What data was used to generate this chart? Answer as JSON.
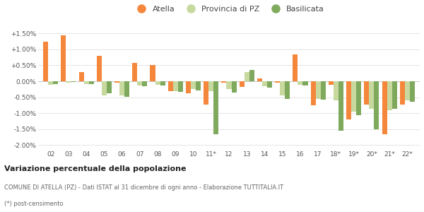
{
  "categories": [
    "02",
    "03",
    "04",
    "05",
    "06",
    "07",
    "08",
    "09",
    "10",
    "11*",
    "12",
    "13",
    "14",
    "15",
    "16",
    "17",
    "18*",
    "19*",
    "20*",
    "21*",
    "22*"
  ],
  "atella": [
    1.25,
    1.45,
    0.28,
    0.8,
    -0.05,
    0.57,
    0.5,
    -0.3,
    -0.38,
    -0.72,
    -0.05,
    -0.18,
    0.08,
    -0.05,
    0.85,
    -0.75,
    -0.1,
    -1.2,
    -0.72,
    -1.65,
    -0.72
  ],
  "provincia": [
    -0.1,
    -0.05,
    -0.08,
    -0.45,
    -0.45,
    -0.12,
    -0.1,
    -0.3,
    -0.25,
    -0.3,
    -0.25,
    0.3,
    -0.15,
    -0.45,
    -0.1,
    -0.55,
    -0.6,
    -0.95,
    -0.85,
    -0.9,
    -0.6
  ],
  "basilicata": [
    -0.08,
    -0.03,
    -0.08,
    -0.38,
    -0.48,
    -0.15,
    -0.12,
    -0.32,
    -0.28,
    -1.65,
    -0.35,
    0.35,
    -0.2,
    -0.55,
    -0.12,
    -0.58,
    -1.55,
    -1.05,
    -1.5,
    -0.85,
    -0.65
  ],
  "color_atella": "#f4873b",
  "color_provincia": "#c8d9a0",
  "color_basilicata": "#7faa5e",
  "background": "#ffffff",
  "grid_color": "#e0e0e0",
  "title_bold": "Variazione percentuale della popolazione",
  "subtitle": "COMUNE DI ATELLA (PZ) - Dati ISTAT al 31 dicembre di ogni anno - Elaborazione TUTTITALIA.IT",
  "footnote": "(*) post-censimento",
  "ylim": [
    -2.1,
    1.75
  ],
  "yticks": [
    -2.0,
    -1.5,
    -1.0,
    -0.5,
    0.0,
    0.5,
    1.0,
    1.5
  ],
  "ytick_labels": [
    "-2.00%",
    "-1.50%",
    "-1.00%",
    "-0.50%",
    "0.00%",
    "+0.50%",
    "+1.00%",
    "+1.50%"
  ],
  "bar_width": 0.28
}
